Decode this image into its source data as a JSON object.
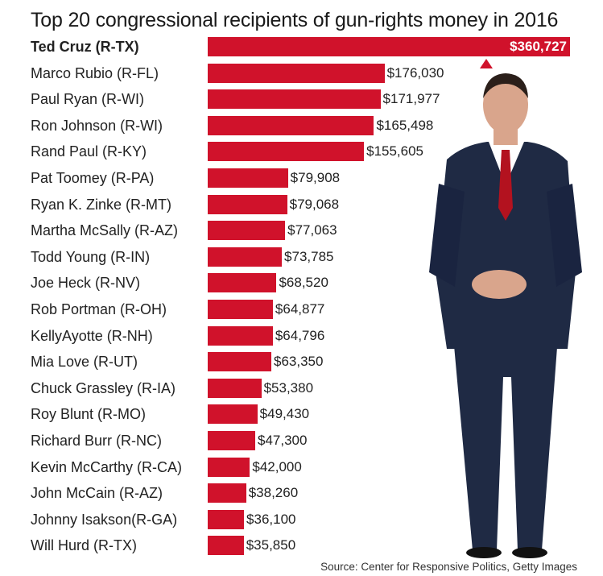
{
  "chart_data": {
    "type": "bar",
    "orientation": "horizontal",
    "title": "Top 20 congressional recipients of gun-rights money in 2016",
    "source": "Source: Center for Responsive Politics, Getty Images",
    "categories": [
      "Ted Cruz (R-TX)",
      "Marco Rubio (R-FL)",
      "Paul Ryan (R-WI)",
      "Ron Johnson (R-WI)",
      "Rand Paul (R-KY)",
      "Pat Toomey (R-PA)",
      "Ryan K. Zinke (R-MT)",
      "Martha McSally (R-AZ)",
      "Todd Young (R-IN)",
      "Joe Heck (R-NV)",
      "Rob Portman (R-OH)",
      "KellyAyotte (R-NH)",
      "Mia Love (R-UT)",
      "Chuck Grassley (R-IA)",
      "Roy Blunt (R-MO)",
      "Richard Burr (R-NC)",
      "Kevin McCarthy (R-CA)",
      "John McCain (R-AZ)",
      "Johnny  Isakson(R-GA)",
      "Will Hurd (R-TX)"
    ],
    "values": [
      360727,
      176030,
      171977,
      165498,
      155605,
      79908,
      79068,
      77063,
      73785,
      68520,
      64877,
      64796,
      63350,
      53380,
      49430,
      47300,
      42000,
      38260,
      36100,
      35850
    ],
    "value_labels": [
      "$360,727",
      "$176,030",
      "$171,977",
      "$165,498",
      "$155,605",
      "$79,908",
      "$79,068",
      "$77,063",
      "$73,785",
      "$68,520",
      "$64,877",
      "$64,796",
      "$63,350",
      "$53,380",
      "$49,430",
      "$47,300",
      "$42,000",
      "$38,260",
      "$36,100",
      "$35,850"
    ],
    "xlim": [
      0,
      360727
    ],
    "bar_color": "#d0122b",
    "highlight_index": 0
  },
  "colors": {
    "bar": "#d0122b",
    "suit": "#1f2a44",
    "shirt": "#ffffff",
    "tie": "#b3121f",
    "skin": "#d9a58c",
    "hair": "#2b1f1a"
  },
  "icons": [
    "up-arrow-icon",
    "person-photo"
  ]
}
